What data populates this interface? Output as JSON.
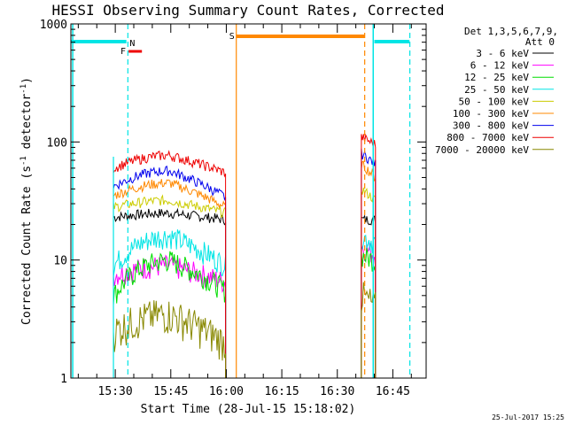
{
  "chart_data": {
    "type": "line",
    "title": "HESSI Observing Summary Count Rates, Corrected",
    "xlabel": "Start Time (28-Jul-15 15:18:02)",
    "ylabel_main": "Corrected Count Rate (s",
    "ylabel_sup": "-1",
    "ylabel_end": " detector",
    "ylabel_end_sup": "-1",
    "ylabel_close": ")",
    "yscale": "log",
    "xlim_minutes": [
      0,
      96
    ],
    "ylim": [
      1,
      1000
    ],
    "x_ticks": [
      {
        "minute": 12,
        "label": "15:30"
      },
      {
        "minute": 27,
        "label": "15:45"
      },
      {
        "minute": 42,
        "label": "16:00"
      },
      {
        "minute": 57,
        "label": "16:15"
      },
      {
        "minute": 72,
        "label": "16:30"
      },
      {
        "minute": 87,
        "label": "16:45"
      }
    ],
    "y_ticks": [
      {
        "value": 1,
        "label": "1"
      },
      {
        "value": 10,
        "label": "10"
      },
      {
        "value": 100,
        "label": "100"
      },
      {
        "value": 1000,
        "label": "1000"
      }
    ],
    "legend_header": [
      "Det 1,3,5,6,7,9,",
      "Att 0"
    ],
    "series": [
      {
        "name": "3 - 6 keV",
        "color": "#000000",
        "seg1": [
          23,
          25,
          22
        ],
        "seg2": [
          22,
          22
        ]
      },
      {
        "name": "6 - 12 keV",
        "color": "#ff00ff",
        "seg1": [
          7.5,
          9,
          6.5
        ],
        "seg2": [
          13,
          11
        ]
      },
      {
        "name": "12 - 25 keV",
        "color": "#00dd00",
        "seg1": [
          5,
          10,
          5.5
        ],
        "seg2": [
          11,
          10
        ]
      },
      {
        "name": "25 - 50 keV",
        "color": "#00e5e5",
        "seg1": [
          9,
          16,
          9
        ],
        "seg2": [
          16,
          14
        ]
      },
      {
        "name": "50 - 100 keV",
        "color": "#cccc00",
        "seg1": [
          28,
          32,
          25
        ],
        "seg2": [
          40,
          32
        ]
      },
      {
        "name": "100 - 300 keV",
        "color": "#ff8800",
        "seg1": [
          35,
          45,
          28
        ],
        "seg2": [
          65,
          50
        ]
      },
      {
        "name": "300 - 800 keV",
        "color": "#0000ee",
        "seg1": [
          42,
          57,
          34
        ],
        "seg2": [
          80,
          65
        ]
      },
      {
        "name": "800 - 7000 keV",
        "color": "#ee0000",
        "seg1": [
          60,
          77,
          55
        ],
        "seg2": [
          110,
          95
        ]
      },
      {
        "name": "7000 - 20000 keV",
        "color": "#888800",
        "seg1": [
          2.5,
          3.5,
          2
        ],
        "seg2": [
          5,
          4
        ]
      }
    ],
    "bands": {
      "night_label": "N",
      "flare_label": "F",
      "saa_label": "S"
    },
    "footer_date": "25-Jul-2017 15:25"
  }
}
